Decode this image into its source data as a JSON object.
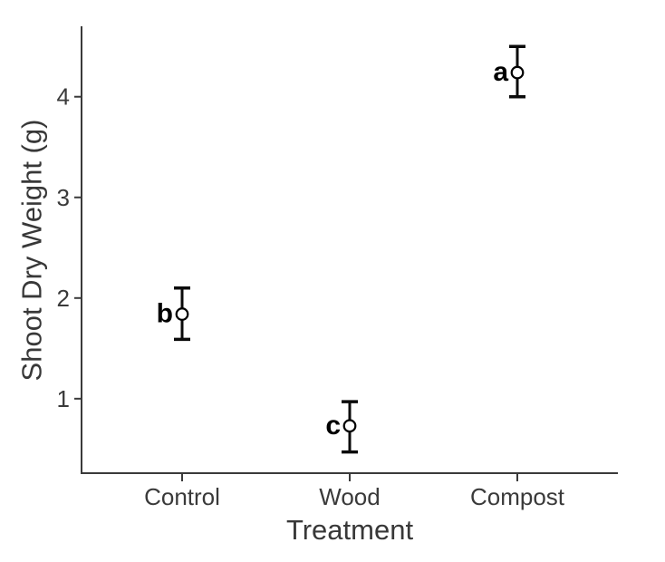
{
  "chart_data": {
    "type": "scatter",
    "subtype": "means-with-error-bars",
    "title": "",
    "xlabel": "Treatment",
    "ylabel": "Shoot Dry Weight (g)",
    "categories": [
      "Control",
      "Wood",
      "Compost"
    ],
    "series": [
      {
        "name": "Shoot Dry Weight mean",
        "means": [
          1.84,
          0.73,
          4.24
        ],
        "upper": [
          2.1,
          0.97,
          4.5
        ],
        "lower": [
          1.59,
          0.47,
          4.0
        ],
        "sig_letters": [
          "b",
          "c",
          "a"
        ]
      }
    ],
    "y_ticks": [
      1,
      2,
      3,
      4
    ],
    "ylim": [
      0.26,
      4.7
    ],
    "grid": false,
    "legend": false,
    "marker": {
      "shape": "open-circle",
      "fill": "#ffffff",
      "stroke": "#000000"
    },
    "colors": {
      "axis": "#3a3a3a",
      "tick_text": "#3a3a3a",
      "error_bar": "#0b0b0b",
      "letter": "#000000",
      "background": "#ffffff"
    }
  }
}
